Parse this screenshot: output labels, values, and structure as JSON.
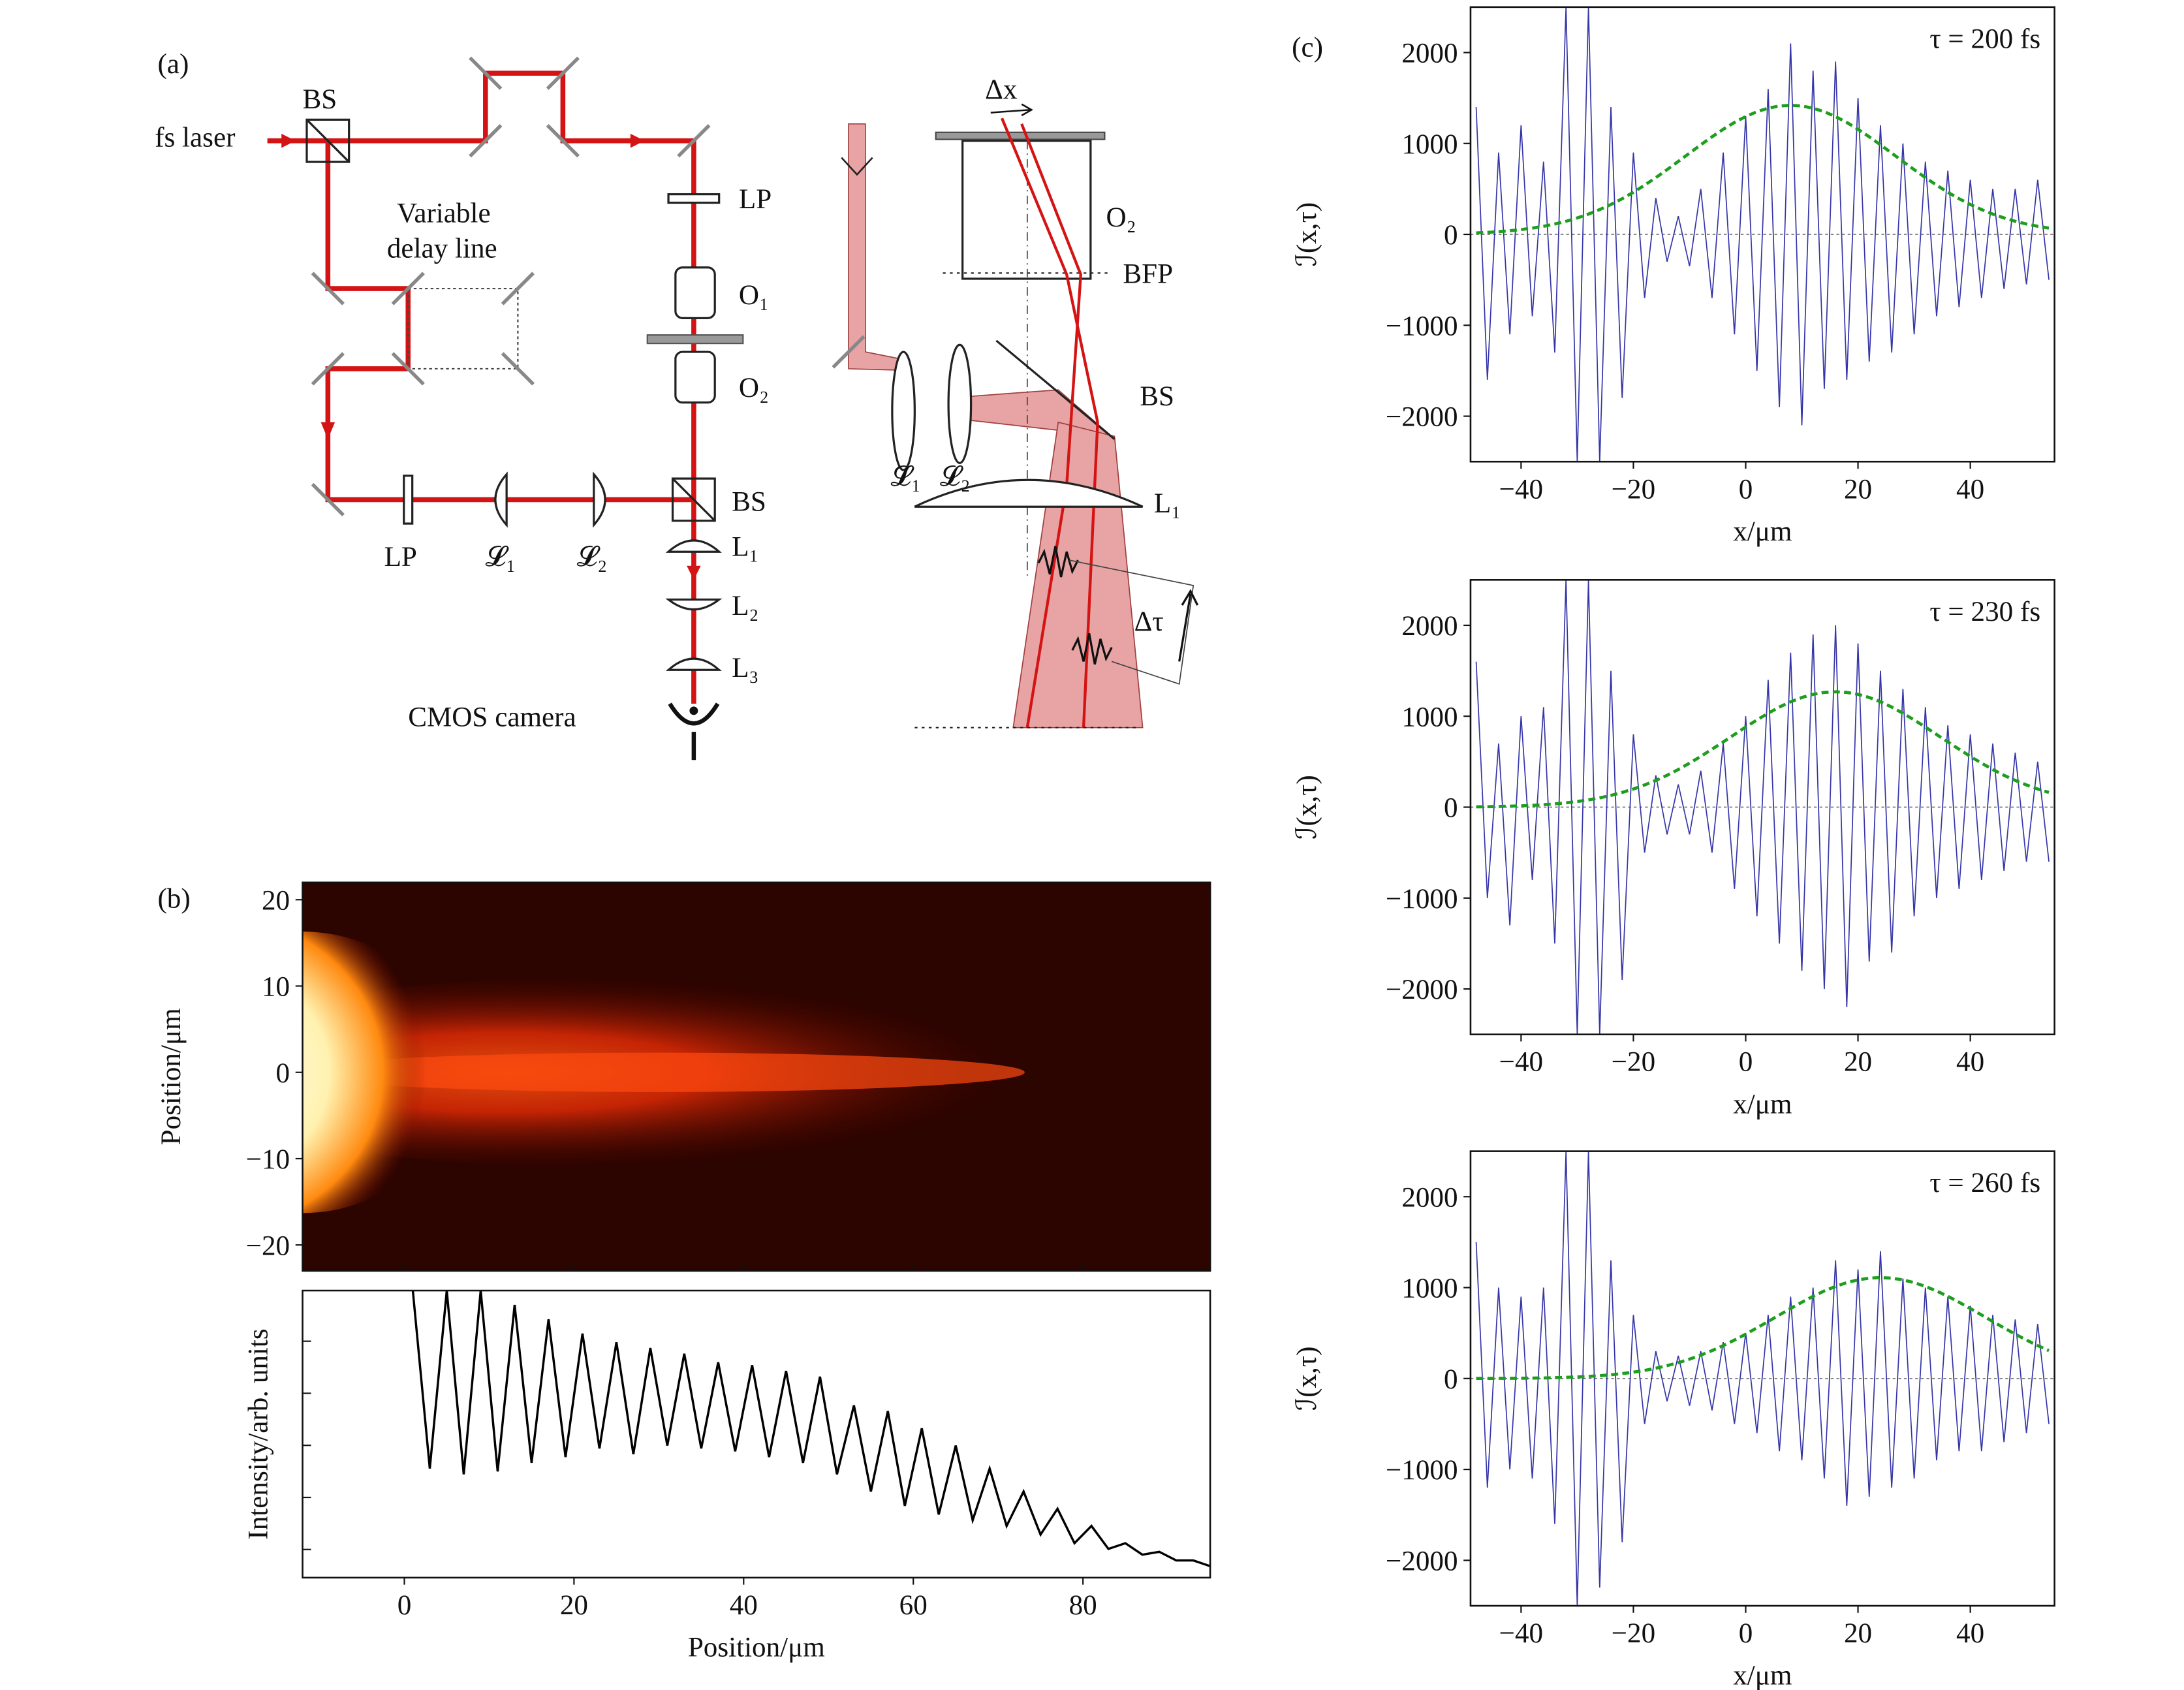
{
  "diagram": {
    "texts": [
      "(a)",
      "BS",
      "fs laser",
      "Variable",
      "delay line",
      "LP",
      "O₁",
      "O₂",
      "BS",
      "L₁",
      "L₂",
      "L₃",
      "LP",
      "𝓛₁",
      "𝓛₂",
      "CMOS camera",
      "Δx",
      "O₂",
      "BFP",
      "BS",
      "𝓛₁",
      "𝓛₂",
      "L₁",
      "Δτ"
    ],
    "panel_b": "(b)",
    "panel_c": "(c)"
  },
  "chart_data": [
    {
      "type": "heatmap",
      "ylabel": "Position/μm",
      "xlim": [
        -12,
        95
      ],
      "ylim": [
        -23,
        22
      ],
      "yticks": [
        {
          "value": -20,
          "label": "−20"
        },
        {
          "value": -10,
          "label": "−10"
        },
        0,
        10,
        20
      ]
    },
    {
      "type": "line",
      "xlabel": "Position/μm",
      "ylabel": "Intensity/arb. units",
      "xlim": [
        -12,
        95
      ],
      "ylim": [
        0,
        1
      ],
      "xticks": [
        0,
        20,
        40,
        60,
        80
      ],
      "x": [
        1,
        3,
        5,
        7,
        9,
        11,
        13,
        15,
        17,
        19,
        21,
        23,
        25,
        27,
        29,
        31,
        33,
        35,
        37,
        39,
        41,
        43,
        45,
        47,
        49,
        51,
        53,
        55,
        57,
        59,
        61,
        63,
        65,
        67,
        69,
        71,
        73,
        75,
        77,
        79,
        81,
        83,
        85,
        87,
        89,
        91,
        93,
        95
      ],
      "series": [
        {
          "color": "#000000",
          "values": [
            1.0,
            0.38,
            1.0,
            0.36,
            1.0,
            0.37,
            0.95,
            0.4,
            0.9,
            0.42,
            0.85,
            0.45,
            0.82,
            0.43,
            0.8,
            0.46,
            0.78,
            0.45,
            0.75,
            0.44,
            0.74,
            0.42,
            0.72,
            0.4,
            0.7,
            0.36,
            0.6,
            0.3,
            0.58,
            0.25,
            0.52,
            0.22,
            0.46,
            0.2,
            0.38,
            0.18,
            0.3,
            0.15,
            0.24,
            0.12,
            0.18,
            0.1,
            0.12,
            0.08,
            0.09,
            0.06,
            0.06,
            0.04
          ]
        }
      ]
    },
    {
      "type": "line",
      "title": "τ = 200 fs",
      "xlabel": "x/μm",
      "ylabel": "ℐ(x,τ)",
      "xlim": [
        -49,
        55
      ],
      "ylim": [
        -2500,
        2500
      ],
      "zero_line": true,
      "xticks": [
        {
          "value": -40,
          "label": "−40"
        },
        {
          "value": -20,
          "label": "−20"
        },
        0,
        20,
        40
      ],
      "yticks": [
        {
          "value": -2000,
          "label": "−2000"
        },
        {
          "value": -1000,
          "label": "−1000"
        },
        0,
        1000,
        2000
      ],
      "x": [
        -48,
        -46,
        -44,
        -42,
        -40,
        -38,
        -36,
        -34,
        -32,
        -30,
        -28,
        -26,
        -24,
        -22,
        -20,
        -18,
        -16,
        -14,
        -12,
        -10,
        -8,
        -6,
        -4,
        -2,
        0,
        2,
        4,
        6,
        8,
        10,
        12,
        14,
        16,
        18,
        20,
        22,
        24,
        26,
        28,
        30,
        32,
        34,
        36,
        38,
        40,
        42,
        44,
        46,
        48,
        50,
        52,
        54
      ],
      "series": [
        {
          "color": "#3636a8",
          "values": [
            1400,
            -1600,
            900,
            -1100,
            1200,
            -900,
            800,
            -1300,
            2500,
            -2500,
            2500,
            -2500,
            1400,
            -1800,
            900,
            -700,
            400,
            -300,
            200,
            -350,
            500,
            -700,
            900,
            -1100,
            1300,
            -1500,
            1600,
            -1900,
            2100,
            -2100,
            1800,
            -1700,
            1900,
            -1600,
            1500,
            -1400,
            1200,
            -1300,
            1000,
            -1100,
            800,
            -900,
            700,
            -800,
            600,
            -700,
            500,
            -600,
            500,
            -550,
            600,
            -500
          ]
        },
        {
          "color": "#1e9e1e",
          "dashed": true,
          "values": [
            16,
            22,
            30,
            40,
            53,
            69,
            89,
            114,
            144,
            181,
            223,
            273,
            329,
            392,
            463,
            541,
            624,
            712,
            802,
            894,
            985,
            1073,
            1156,
            1231,
            1296,
            1349,
            1388,
            1412,
            1420,
            1412,
            1388,
            1349,
            1296,
            1231,
            1156,
            1073,
            985,
            894,
            802,
            712,
            624,
            541,
            463,
            392,
            329,
            273,
            223,
            181,
            144,
            114,
            89,
            69
          ]
        }
      ]
    },
    {
      "type": "line",
      "title": "τ = 230 fs",
      "xlabel": "x/μm",
      "ylabel": "ℐ(x,τ)",
      "xlim": [
        -49,
        55
      ],
      "ylim": [
        -2500,
        2500
      ],
      "zero_line": true,
      "xticks": [
        {
          "value": -40,
          "label": "−40"
        },
        {
          "value": -20,
          "label": "−20"
        },
        0,
        20,
        40
      ],
      "yticks": [
        {
          "value": -2000,
          "label": "−2000"
        },
        {
          "value": -1000,
          "label": "−1000"
        },
        0,
        1000,
        2000
      ],
      "x": [
        -48,
        -46,
        -44,
        -42,
        -40,
        -38,
        -36,
        -34,
        -32,
        -30,
        -28,
        -26,
        -24,
        -22,
        -20,
        -18,
        -16,
        -14,
        -12,
        -10,
        -8,
        -6,
        -4,
        -2,
        0,
        2,
        4,
        6,
        8,
        10,
        12,
        14,
        16,
        18,
        20,
        22,
        24,
        26,
        28,
        30,
        32,
        34,
        36,
        38,
        40,
        42,
        44,
        46,
        48,
        50,
        52,
        54
      ],
      "series": [
        {
          "color": "#3636a8",
          "values": [
            1600,
            -1000,
            700,
            -1300,
            1000,
            -800,
            1100,
            -1500,
            2500,
            -2500,
            2500,
            -2500,
            1500,
            -1900,
            800,
            -500,
            350,
            -300,
            250,
            -300,
            400,
            -500,
            700,
            -900,
            1000,
            -1200,
            1400,
            -1500,
            1700,
            -1800,
            1900,
            -2000,
            2000,
            -2200,
            1800,
            -1700,
            1500,
            -1600,
            1300,
            -1200,
            1100,
            -1000,
            900,
            -900,
            800,
            -800,
            700,
            -700,
            600,
            -600,
            500,
            -600
          ]
        },
        {
          "color": "#1e9e1e",
          "dashed": true,
          "values": [
            4,
            5,
            7,
            11,
            14,
            20,
            27,
            36,
            47,
            62,
            80,
            102,
            129,
            162,
            199,
            244,
            294,
            350,
            414,
            484,
            558,
            637,
            717,
            799,
            881,
            959,
            1033,
            1101,
            1159,
            1206,
            1241,
            1262,
            1269,
            1262,
            1241,
            1206,
            1159,
            1101,
            1033,
            959,
            881,
            799,
            717,
            637,
            558,
            484,
            414,
            350,
            294,
            244,
            199,
            162
          ]
        }
      ]
    },
    {
      "type": "line",
      "title": "τ = 260 fs",
      "xlabel": "x/μm",
      "ylabel": "ℐ(x,τ)",
      "xlim": [
        -49,
        55
      ],
      "ylim": [
        -2500,
        2500
      ],
      "zero_line": true,
      "xticks": [
        {
          "value": -40,
          "label": "−40"
        },
        {
          "value": -20,
          "label": "−20"
        },
        0,
        20,
        40
      ],
      "yticks": [
        {
          "value": -2000,
          "label": "−2000"
        },
        {
          "value": -1000,
          "label": "−1000"
        },
        0,
        1000,
        2000
      ],
      "x": [
        -48,
        -46,
        -44,
        -42,
        -40,
        -38,
        -36,
        -34,
        -32,
        -30,
        -28,
        -26,
        -24,
        -22,
        -20,
        -18,
        -16,
        -14,
        -12,
        -10,
        -8,
        -6,
        -4,
        -2,
        0,
        2,
        4,
        6,
        8,
        10,
        12,
        14,
        16,
        18,
        20,
        22,
        24,
        26,
        28,
        30,
        32,
        34,
        36,
        38,
        40,
        42,
        44,
        46,
        48,
        50,
        52,
        54
      ],
      "series": [
        {
          "color": "#3636a8",
          "values": [
            1500,
            -1200,
            1000,
            -1000,
            900,
            -1100,
            1000,
            -1600,
            2500,
            -2500,
            2500,
            -2300,
            1300,
            -1800,
            700,
            -500,
            300,
            -250,
            250,
            -300,
            300,
            -350,
            400,
            -500,
            500,
            -600,
            700,
            -800,
            900,
            -900,
            1000,
            -1100,
            1300,
            -1400,
            1200,
            -1300,
            1400,
            -1200,
            1100,
            -1100,
            1000,
            -900,
            900,
            -800,
            800,
            -800,
            700,
            -700,
            650,
            -600,
            600,
            -500
          ]
        },
        {
          "color": "#1e9e1e",
          "dashed": true,
          "values": [
            1,
            1,
            2,
            2,
            3,
            5,
            6,
            9,
            13,
            17,
            23,
            31,
            41,
            54,
            70,
            89,
            113,
            142,
            174,
            213,
            257,
            307,
            362,
            423,
            488,
            557,
            627,
            699,
            770,
            839,
            904,
            963,
            1013,
            1055,
            1085,
            1104,
            1110,
            1104,
            1085,
            1055,
            1013,
            963,
            904,
            839,
            770,
            699,
            627,
            557,
            488,
            423,
            362,
            307
          ]
        }
      ]
    }
  ]
}
